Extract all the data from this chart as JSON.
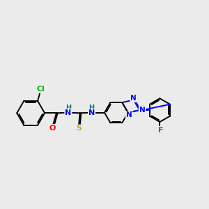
{
  "bg_color": "#ebebeb",
  "atom_colors": {
    "Cl": "#00bb00",
    "O": "#ff0000",
    "N": "#0000ff",
    "S": "#ccaa00",
    "F": "#cc00cc",
    "H": "#007777",
    "C": "#000000"
  }
}
